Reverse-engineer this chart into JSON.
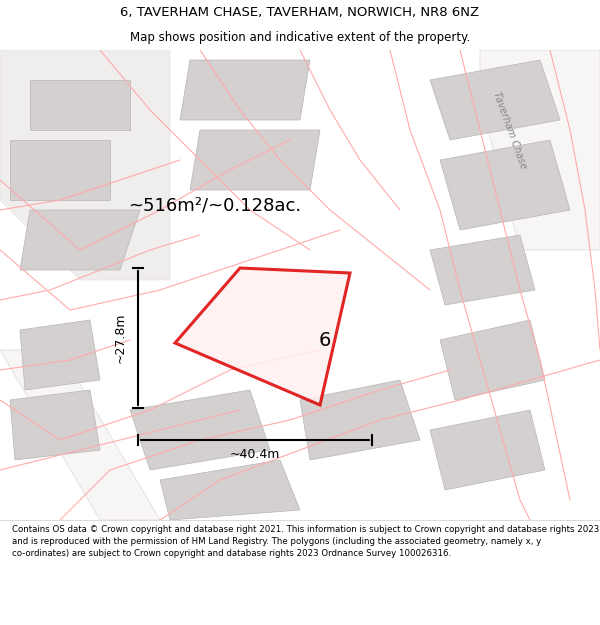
{
  "title_line1": "6, TAVERHAM CHASE, TAVERHAM, NORWICH, NR8 6NZ",
  "title_line2": "Map shows position and indicative extent of the property.",
  "footer_text": "Contains OS data © Crown copyright and database right 2021. This information is subject to Crown copyright and database rights 2023 and is reproduced with the permission of HM Land Registry. The polygons (including the associated geometry, namely x, y co-ordinates) are subject to Crown copyright and database rights 2023 Ordnance Survey 100026316.",
  "area_label": "~516m²/~0.128ac.",
  "width_label": "~40.4m",
  "height_label": "~27.8m",
  "plot_number": "6",
  "map_bg": "#f5f5f5",
  "plot_color": "#ff0000",
  "plot_fill": "#f0e8e8",
  "street_name": "Taverham Chase",
  "bg_color": "#ffffff",
  "map_area_bg": "#ebebeb",
  "building_color": "#d8d8d8",
  "building_outline": "#c0c0c0",
  "road_color": "#ffffff",
  "road_outline": "#d0d0d0",
  "pink_line_color": "#ffaaaa"
}
